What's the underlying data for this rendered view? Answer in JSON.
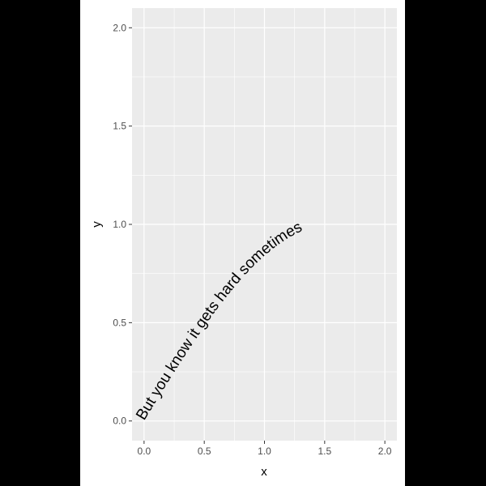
{
  "chart_data": {
    "type": "line",
    "title": "",
    "xlabel": "x",
    "ylabel": "y",
    "xlim": [
      -0.1,
      2.1
    ],
    "ylim": [
      -0.1,
      2.1
    ],
    "x_ticks": [
      0.0,
      0.5,
      1.0,
      1.5,
      2.0
    ],
    "x_tick_labels": [
      "0.0",
      "0.5",
      "1.0",
      "1.5",
      "2.0"
    ],
    "y_ticks": [
      0.0,
      0.5,
      1.0,
      1.5,
      2.0
    ],
    "y_tick_labels": [
      "0.0",
      "0.5",
      "1.0",
      "1.5",
      "2.0"
    ],
    "grid": true,
    "series": [
      {
        "text": "But you know it gets hard sometimes",
        "x": [
          0.0,
          0.1,
          0.2,
          0.3,
          0.4,
          0.5,
          0.6,
          0.7,
          0.8,
          0.9,
          1.0,
          1.1,
          1.2,
          1.3,
          1.4,
          1.5,
          1.6,
          1.7,
          1.8,
          1.9,
          2.0
        ],
        "y": [
          0.0,
          0.1,
          0.199,
          0.296,
          0.389,
          0.479,
          0.565,
          0.644,
          0.717,
          0.783,
          0.841,
          0.891,
          0.932,
          0.964,
          0.985,
          0.997,
          1.0,
          0.992,
          0.974,
          0.946,
          0.909
        ]
      }
    ],
    "colors": {
      "panel": "#EBEBEB",
      "grid": "#FFFFFF",
      "axis_text": "#4D4D4D",
      "title_text": "#000000",
      "page": "#FFFFFF",
      "surround": "#000000"
    }
  }
}
